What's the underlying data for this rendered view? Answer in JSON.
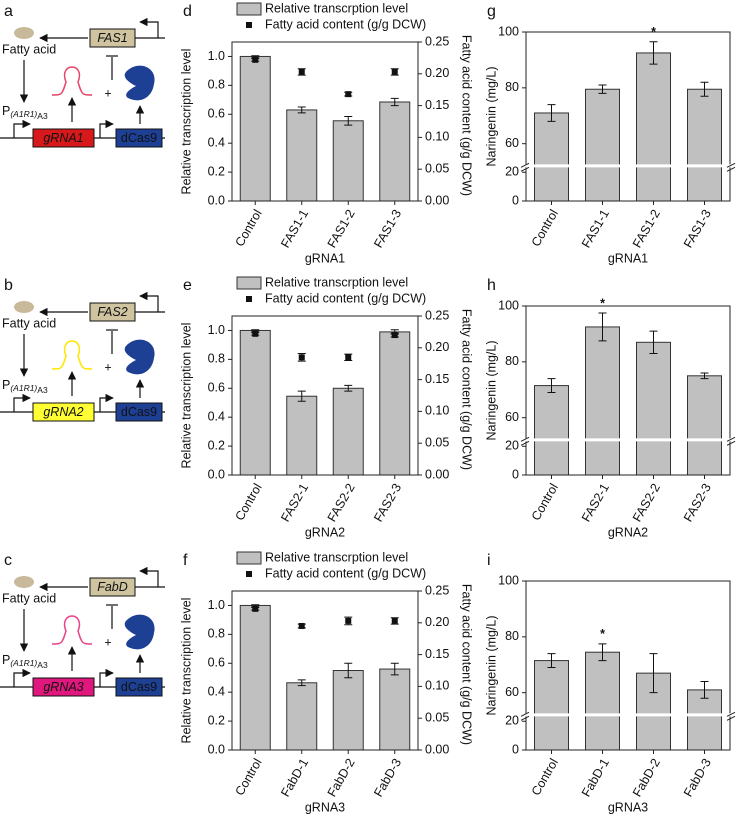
{
  "diagrams": [
    {
      "panel": "a",
      "product": "Fatty acid",
      "gene": "FAS1",
      "promoter": "P",
      "promoter_sub": "(A1R1)",
      "promoter_sub2": "A3",
      "plus": "+",
      "grna": "gRNA1",
      "grna_color": "#d7191c",
      "hairpin_color": "#e8456a",
      "dcas": "dCas9"
    },
    {
      "panel": "b",
      "product": "Fatty acid",
      "gene": "FAS2",
      "promoter": "P",
      "promoter_sub": "(A1R1)",
      "promoter_sub2": "A3",
      "plus": "+",
      "grna": "gRNA2",
      "grna_color": "#ffff33",
      "hairpin_color": "#ffe600",
      "dcas": "dCas9"
    },
    {
      "panel": "c",
      "product": "Fatty acid",
      "gene": "FabD",
      "promoter": "P",
      "promoter_sub": "(A1R1)",
      "promoter_sub2": "A3",
      "plus": "+",
      "grna": "gRNA3",
      "grna_color": "#e0177d",
      "hairpin_color": "#e8458a",
      "dcas": "dCas9"
    }
  ],
  "chart_data": [
    {
      "panel": "d",
      "type": "bar",
      "ylabel": "Relative transcription level",
      "y2label": "Fatty acid content (g/g DCW)",
      "xlabel": "gRNA1",
      "categories": [
        "Control",
        "FAS1-1",
        "FAS1-2",
        "FAS1-3"
      ],
      "ylim": [
        0,
        1.1
      ],
      "yticks": [
        {
          "value": 0,
          "label": "0.0"
        },
        0.2,
        0.4,
        0.6,
        0.8,
        {
          "value": 1,
          "label": "1.0"
        }
      ],
      "y2lim": [
        0,
        0.25
      ],
      "y2ticks": [
        {
          "value": 0,
          "label": "0.00"
        },
        0.05,
        {
          "value": 0.1,
          "label": "0.10"
        },
        0.15,
        {
          "value": 0.2,
          "label": "0.20"
        },
        0.25
      ],
      "series": [
        {
          "name": "Relative transcrption level",
          "color": "#c0c0c0",
          "values": [
            1.0,
            0.63,
            0.555,
            0.685
          ],
          "errors": [
            0.005,
            0.02,
            0.03,
            0.025
          ]
        },
        {
          "name": "Fatty acid content (g/g DCW)",
          "color": "#111111",
          "marker": "square",
          "axis": "y2",
          "values": [
            0.222,
            0.203,
            0.168,
            0.203
          ],
          "errors": [
            0.002,
            0.005,
            0.003,
            0.005
          ]
        }
      ],
      "legend": "top"
    },
    {
      "panel": "g",
      "type": "bar",
      "ylabel": "Naringenin (mg/L)",
      "xlabel": "gRNA1",
      "categories": [
        "Control",
        "FAS1-1",
        "FAS1-2",
        "FAS1-3"
      ],
      "ylim": [
        0,
        100
      ],
      "ybreak": [
        20,
        54
      ],
      "yticks": [
        0,
        20,
        60,
        80,
        100
      ],
      "color": "#c0c0c0",
      "values": [
        71,
        79.5,
        92.5,
        79.5
      ],
      "errors": [
        3,
        1.5,
        4,
        2.5
      ],
      "annotations": [
        {
          "text": "*",
          "category": "FAS1-2"
        }
      ]
    },
    {
      "panel": "e",
      "type": "bar",
      "ylabel": "Relative transcription level",
      "y2label": "Fatty acid content (g/g DCW)",
      "xlabel": "gRNA2",
      "categories": [
        "Control",
        "FAS2-1",
        "FAS2-2",
        "FAS2-3"
      ],
      "ylim": [
        0,
        1.1
      ],
      "yticks": [
        {
          "value": 0,
          "label": "0.0"
        },
        0.2,
        0.4,
        0.6,
        0.8,
        {
          "value": 1,
          "label": "1.0"
        }
      ],
      "y2lim": [
        0,
        0.25
      ],
      "y2ticks": [
        {
          "value": 0,
          "label": "0.00"
        },
        0.05,
        {
          "value": 0.1,
          "label": "0.10"
        },
        0.15,
        {
          "value": 0.2,
          "label": "0.20"
        },
        0.25
      ],
      "series": [
        {
          "name": "Relative transcrption level",
          "color": "#c0c0c0",
          "values": [
            1.0,
            0.545,
            0.6,
            0.99
          ],
          "errors": [
            0.005,
            0.035,
            0.02,
            0.015
          ]
        },
        {
          "name": "Fatty acid content (g/g DCW)",
          "color": "#111111",
          "marker": "square",
          "axis": "y2",
          "values": [
            0.222,
            0.185,
            0.185,
            0.22
          ],
          "errors": [
            0.002,
            0.006,
            0.005,
            0.003
          ]
        }
      ],
      "legend": "top"
    },
    {
      "panel": "h",
      "type": "bar",
      "ylabel": "Naringenin (mg/L)",
      "xlabel": "gRNA2",
      "categories": [
        "Control",
        "FAS2-1",
        "FAS2-2",
        "FAS2-3"
      ],
      "ylim": [
        0,
        100
      ],
      "ybreak": [
        20,
        54
      ],
      "yticks": [
        0,
        20,
        60,
        80,
        100
      ],
      "color": "#c0c0c0",
      "values": [
        71.5,
        92.5,
        87,
        75
      ],
      "errors": [
        2.5,
        5,
        4,
        1
      ],
      "annotations": [
        {
          "text": "*",
          "category": "FAS2-1"
        }
      ]
    },
    {
      "panel": "f",
      "type": "bar",
      "ylabel": "Relative transcription level",
      "y2label": "Fatty acid content (g/g DCW)",
      "xlabel": "gRNA3",
      "categories": [
        "Control",
        "FabD-1",
        "FabD-2",
        "FabD-3"
      ],
      "ylim": [
        0,
        1.1
      ],
      "yticks": [
        {
          "value": 0,
          "label": "0.0"
        },
        0.2,
        0.4,
        0.6,
        0.8,
        {
          "value": 1,
          "label": "1.0"
        }
      ],
      "y2lim": [
        0,
        0.25
      ],
      "y2ticks": [
        {
          "value": 0,
          "label": "0.00"
        },
        0.05,
        {
          "value": 0.1,
          "label": "0.10"
        },
        0.15,
        {
          "value": 0.2,
          "label": "0.20"
        },
        0.25
      ],
      "series": [
        {
          "name": "Relative transcrption level",
          "color": "#c0c0c0",
          "values": [
            1.0,
            0.465,
            0.55,
            0.56
          ],
          "errors": [
            0.005,
            0.02,
            0.05,
            0.04
          ]
        },
        {
          "name": "Fatty acid content (g/g DCW)",
          "color": "#111111",
          "marker": "square",
          "axis": "y2",
          "values": [
            0.222,
            0.195,
            0.203,
            0.203
          ],
          "errors": [
            0.002,
            0.003,
            0.006,
            0.005
          ]
        }
      ],
      "legend": "top"
    },
    {
      "panel": "i",
      "type": "bar",
      "ylabel": "Naringenin (mg/L)",
      "xlabel": "gRNA3",
      "categories": [
        "Control",
        "FabD-1",
        "FabD-2",
        "FabD-3"
      ],
      "ylim": [
        0,
        100
      ],
      "ybreak": [
        20,
        54
      ],
      "yticks": [
        0,
        20,
        60,
        80,
        100
      ],
      "color": "#c0c0c0",
      "values": [
        71.5,
        74.5,
        67,
        61
      ],
      "errors": [
        2.5,
        3,
        7,
        3
      ],
      "annotations": [
        {
          "text": "*",
          "category": "FabD-1"
        }
      ]
    }
  ]
}
